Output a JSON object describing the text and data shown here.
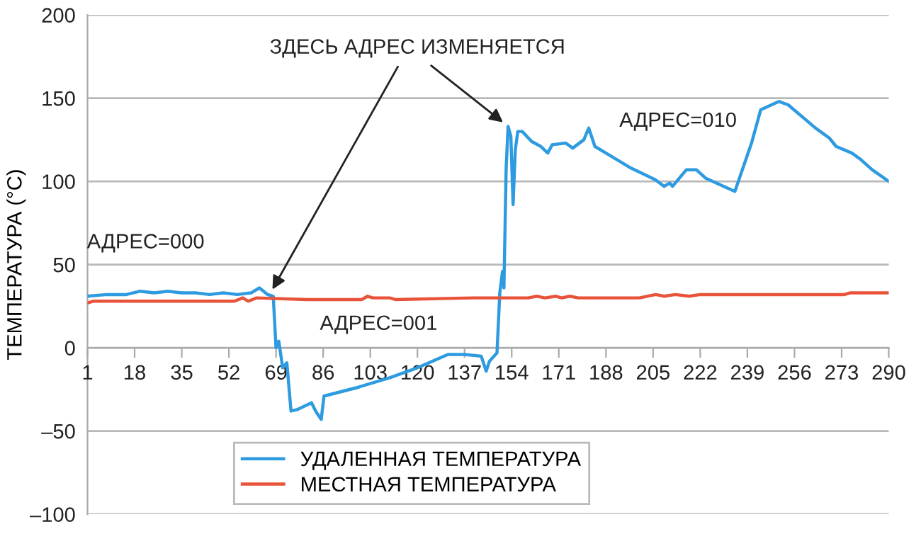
{
  "chart_data": {
    "type": "line",
    "ylabel": "ТЕМПЕРАТУРА (°C)",
    "xlim": [
      1,
      290
    ],
    "xticks": [
      1,
      18,
      35,
      52,
      69,
      86,
      103,
      120,
      137,
      154,
      171,
      188,
      205,
      222,
      239,
      256,
      273,
      290
    ],
    "ylim": [
      -100,
      200
    ],
    "yticks": [
      {
        "value": -100,
        "label": "–100"
      },
      {
        "value": -50,
        "label": "–50"
      },
      0,
      50,
      100,
      150,
      200
    ],
    "grid": "y",
    "legend": "bottom left",
    "annotations": [
      "ЗДЕСЬ АДРЕС ИЗМЕНЯЕТСЯ",
      "АДРЕС=000",
      "АДРЕС=001",
      "АДРЕС=010"
    ],
    "series": [
      {
        "name": "УДАЛЕННАЯ ТЕМПЕРАТУРА",
        "color": "#2e9be0",
        "x": [
          1,
          8,
          15,
          20,
          25,
          30,
          35,
          40,
          45,
          50,
          55,
          60,
          63,
          66,
          68,
          69,
          70,
          71.4,
          72.9,
          74.4,
          76.8,
          81.8,
          83.3,
          85.3,
          86.3,
          98,
          110,
          120,
          131,
          137,
          143,
          144.8,
          146,
          148.7,
          149.7,
          150.7,
          151.2,
          152,
          152.7,
          153.7,
          154.5,
          155.3,
          156.2,
          157.8,
          161.2,
          164.5,
          167,
          168.6,
          173.5,
          176,
          180,
          181.8,
          184,
          188,
          197,
          205.8,
          209,
          211,
          212,
          217,
          220.6,
          223.9,
          230.5,
          234.5,
          240.5,
          243.8,
          250.4,
          253.7,
          263.6,
          268.6,
          271,
          276.7,
          280,
          284,
          290
        ],
        "values": [
          31,
          32,
          32,
          34,
          33,
          34,
          33,
          33,
          32,
          33,
          32,
          33,
          36,
          32,
          31,
          0,
          4,
          -12,
          -9,
          -38,
          -37,
          -33,
          -38,
          -43,
          -29,
          -24,
          -18,
          -12,
          -4,
          -4,
          -5,
          -14,
          -8,
          -3,
          33,
          46,
          36,
          108,
          133,
          127,
          86,
          119,
          130,
          130,
          124,
          121,
          117,
          122,
          123,
          120,
          125,
          132,
          121,
          117,
          108,
          101,
          97,
          99,
          97,
          107,
          107,
          102,
          97,
          94,
          123,
          143,
          148,
          146,
          132,
          126,
          121,
          117,
          113,
          107,
          100
        ]
      },
      {
        "name": "МЕСТНАЯ ТЕМПЕРАТУРА",
        "color": "#e8533a",
        "x": [
          1,
          3,
          20,
          40,
          54,
          57,
          59,
          62,
          80,
          100,
          102,
          104,
          110,
          112,
          140,
          160,
          163,
          166,
          170,
          172,
          175,
          178,
          200,
          206,
          209,
          213,
          218,
          222,
          250,
          272,
          274,
          276,
          290
        ],
        "values": [
          27,
          28,
          28,
          28,
          28,
          30,
          28,
          30,
          29,
          29,
          31,
          30,
          30,
          29,
          30,
          30,
          31,
          30,
          31,
          30,
          31,
          30,
          30,
          32,
          31,
          32,
          31,
          32,
          32,
          32,
          32,
          33,
          33
        ]
      }
    ]
  }
}
